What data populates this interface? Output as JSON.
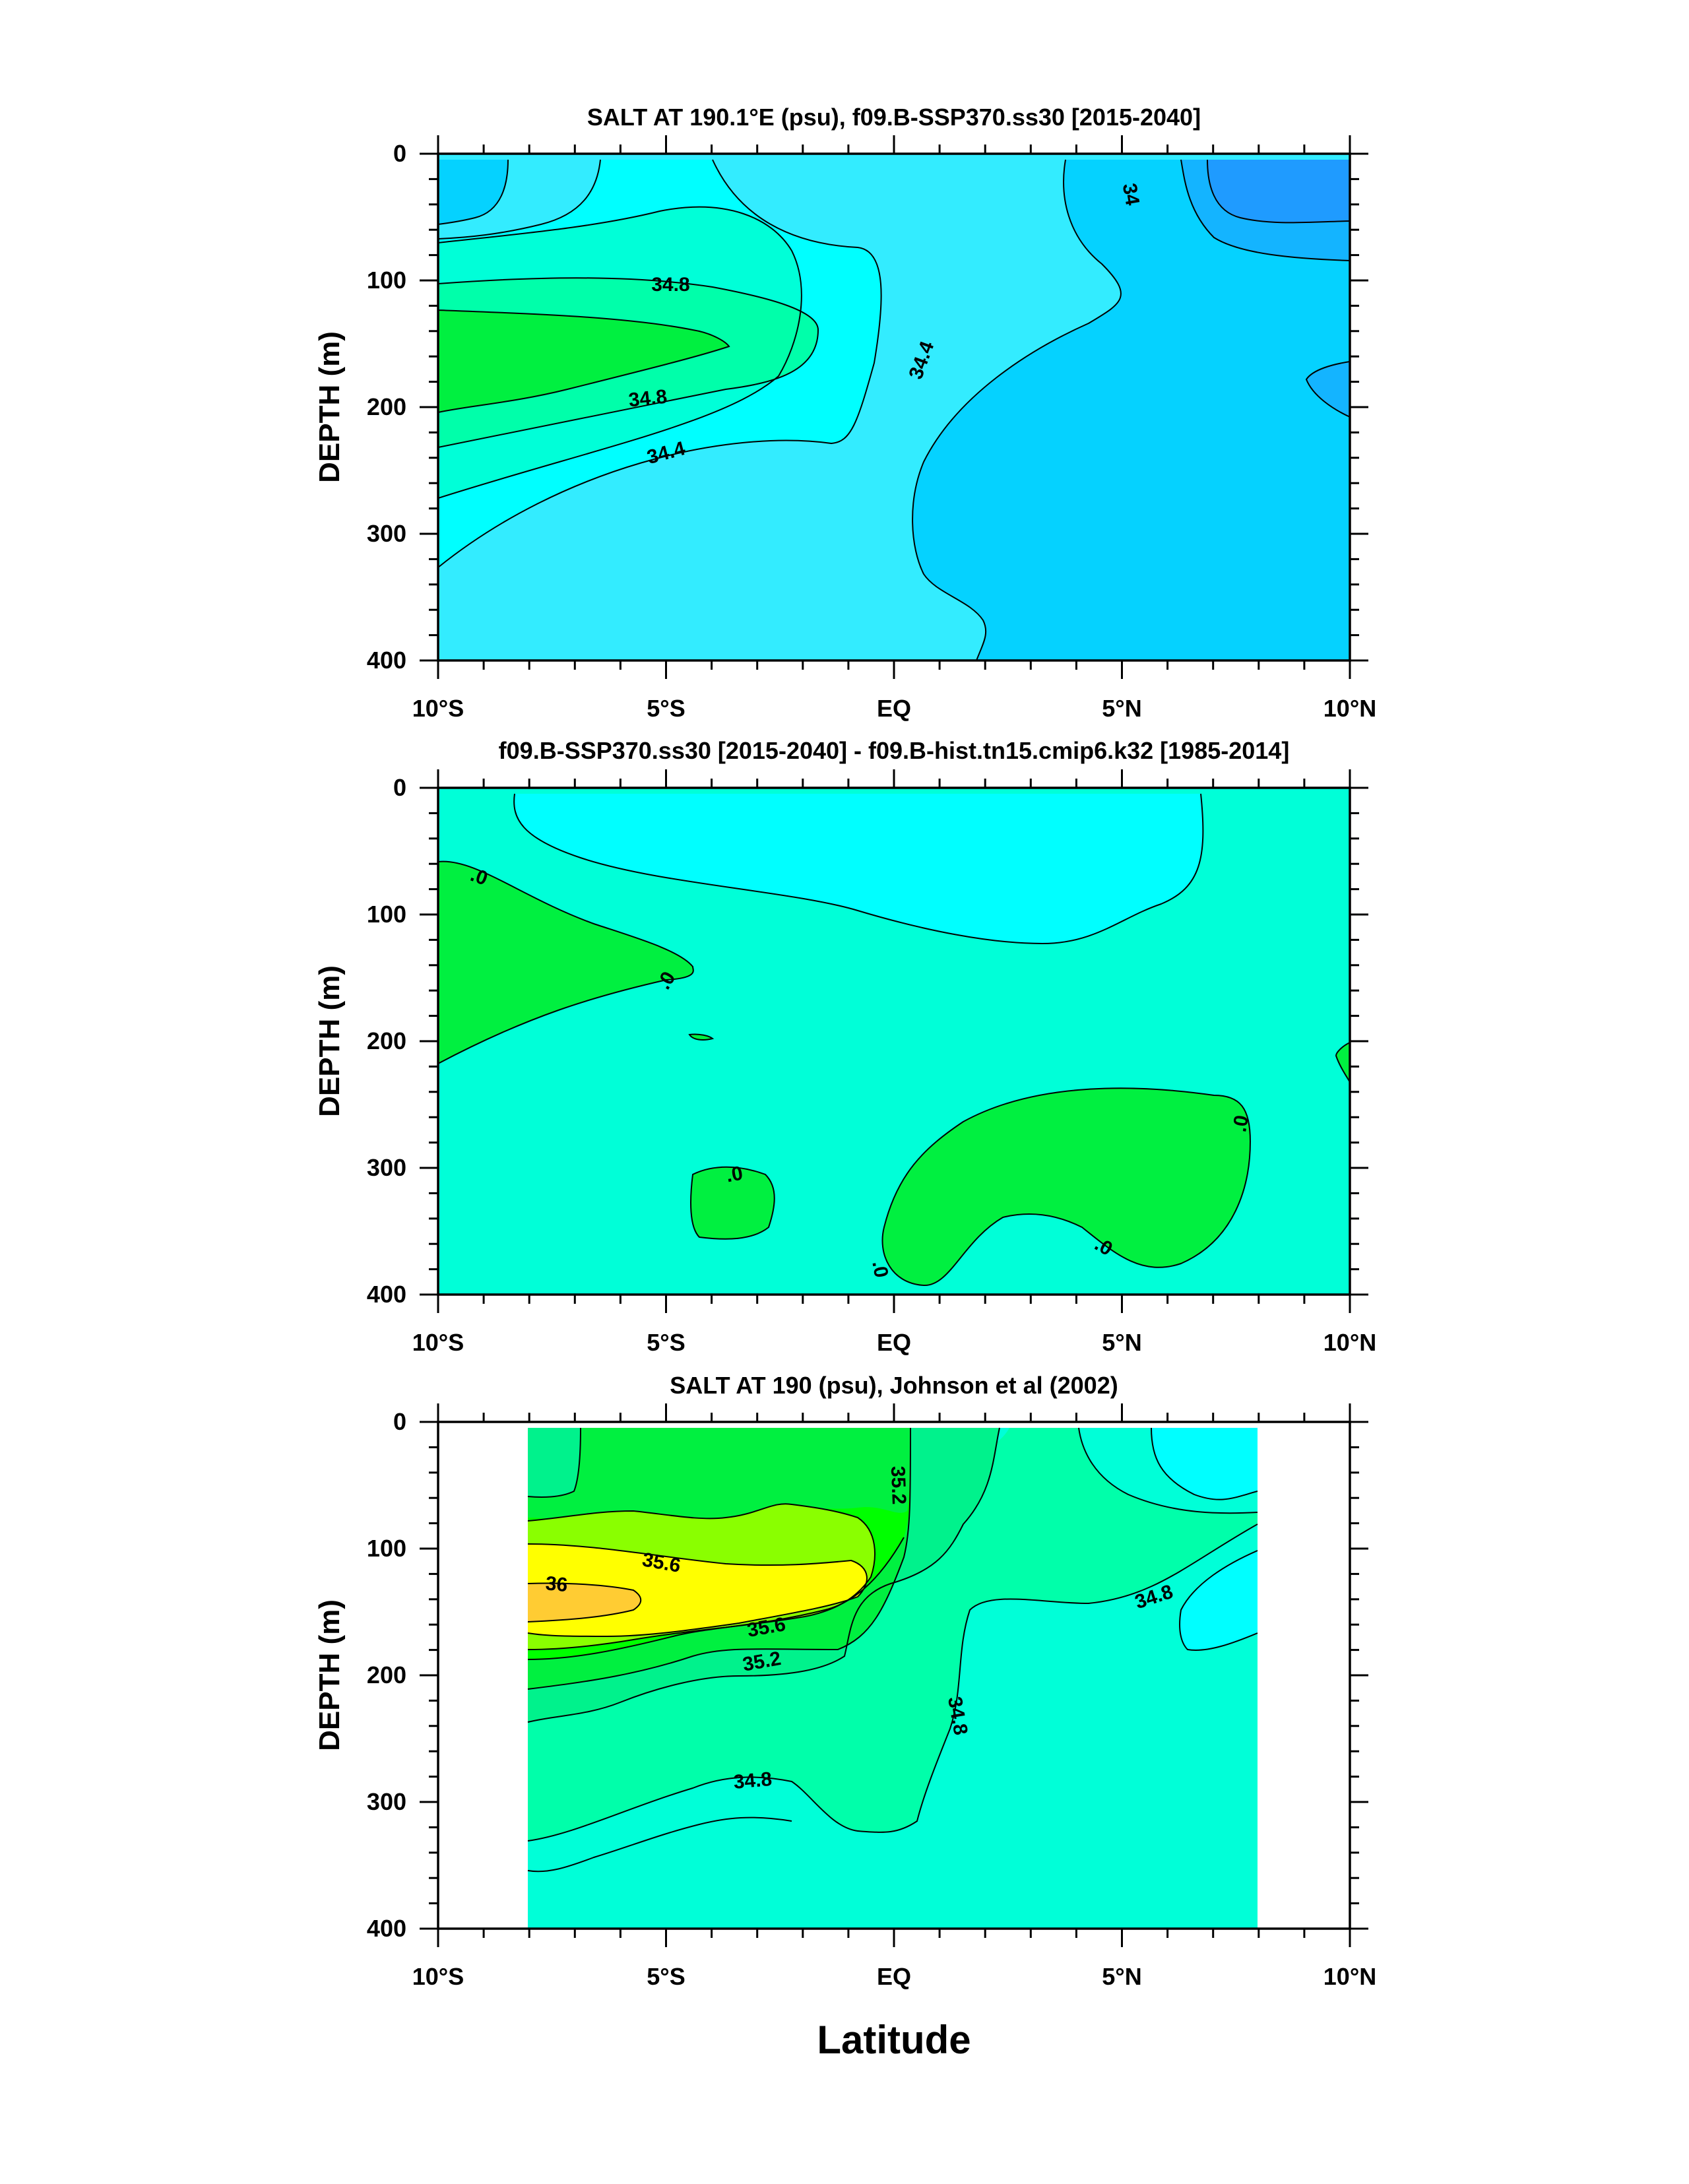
{
  "xlabel": "Latitude",
  "colors": {
    "c33_6": "#1f9bff",
    "c33_8": "#14b4ff",
    "c34_0": "#05d2ff",
    "c34_2": "#33ecff",
    "c34_4": "#00ffff",
    "c34_6": "#00ffd8",
    "c34_8": "#00ffaa",
    "c35_0": "#00f28c",
    "c35_2": "#00f040",
    "c35_4": "#00ff00",
    "c35_6": "#8aff00",
    "c35_8": "#ffff00",
    "c36_0": "#ffcc33",
    "diff_neg": "#00ffff",
    "diff_zero": "#00ffd8",
    "diff_pos": "#00f040"
  },
  "chart_data": [
    {
      "type": "heatmap",
      "title": "SALT AT 190.1°E (psu), f09.B-SSP370.ss30 [2015-2040]",
      "ylabel": "DEPTH (m)",
      "xlim": [
        -10,
        10
      ],
      "ylim": [
        400,
        0
      ],
      "yticks": [
        "0",
        "100",
        "200",
        "300",
        "400"
      ],
      "xticks": [
        "10°S",
        "5°S",
        "EQ",
        "5°N",
        "10°N"
      ],
      "contour_labels": [
        {
          "text": "34",
          "lat": 5.2,
          "depth": 32,
          "rot": 80
        },
        {
          "text": "34.8",
          "lat": -4.9,
          "depth": 103,
          "rot": 0
        },
        {
          "text": "34.4",
          "lat": 0.6,
          "depth": 163,
          "rot": -70
        },
        {
          "text": "34.8",
          "lat": -5.4,
          "depth": 193,
          "rot": -6
        },
        {
          "text": "34.4",
          "lat": -5.0,
          "depth": 236,
          "rot": -15
        }
      ]
    },
    {
      "type": "heatmap",
      "title": "f09.B-SSP370.ss30 [2015-2040] - f09.B-hist.tn15.cmip6.k32 [1985-2014]",
      "ylabel": "DEPTH (m)",
      "xlim": [
        -10,
        10
      ],
      "ylim": [
        400,
        0
      ],
      "yticks": [
        "0",
        "100",
        "200",
        "300",
        "400"
      ],
      "xticks": [
        "10°S",
        "5°S",
        "EQ",
        "5°N",
        "10°N"
      ],
      "contour_labels": [
        {
          "text": ".0",
          "lat": -9.1,
          "depth": 70,
          "rot": 20
        },
        {
          "text": ".0",
          "lat": -5.0,
          "depth": 152,
          "rot": -60
        },
        {
          "text": ".0",
          "lat": -3.5,
          "depth": 305,
          "rot": -10
        },
        {
          "text": ".0",
          "lat": -0.3,
          "depth": 380,
          "rot": 80
        },
        {
          "text": ".0",
          "lat": 4.6,
          "depth": 362,
          "rot": 30
        },
        {
          "text": ".0",
          "lat": 7.6,
          "depth": 265,
          "rot": -80
        }
      ]
    },
    {
      "type": "heatmap",
      "title": "SALT AT 190 (psu), Johnson et al (2002)",
      "ylabel": "DEPTH (m)",
      "xlim": [
        -10,
        10
      ],
      "ylim": [
        400,
        0
      ],
      "data_lat_range": [
        -8,
        8
      ],
      "yticks": [
        "0",
        "100",
        "200",
        "300",
        "400"
      ],
      "xticks": [
        "10°S",
        "5°S",
        "EQ",
        "5°N",
        "10°N"
      ],
      "contour_labels": [
        {
          "text": "35.2",
          "lat": 0.1,
          "depth": 50,
          "rot": 88
        },
        {
          "text": "35.6",
          "lat": -5.1,
          "depth": 111,
          "rot": 10
        },
        {
          "text": "36",
          "lat": -7.4,
          "depth": 128,
          "rot": 5
        },
        {
          "text": "35.6",
          "lat": -2.8,
          "depth": 162,
          "rot": -10
        },
        {
          "text": "34.8",
          "lat": 5.7,
          "depth": 138,
          "rot": -18
        },
        {
          "text": "35.2",
          "lat": -2.9,
          "depth": 189,
          "rot": -10
        },
        {
          "text": "34.8",
          "lat": 1.4,
          "depth": 232,
          "rot": 80
        },
        {
          "text": "34.8",
          "lat": -3.1,
          "depth": 283,
          "rot": -5
        }
      ]
    }
  ]
}
